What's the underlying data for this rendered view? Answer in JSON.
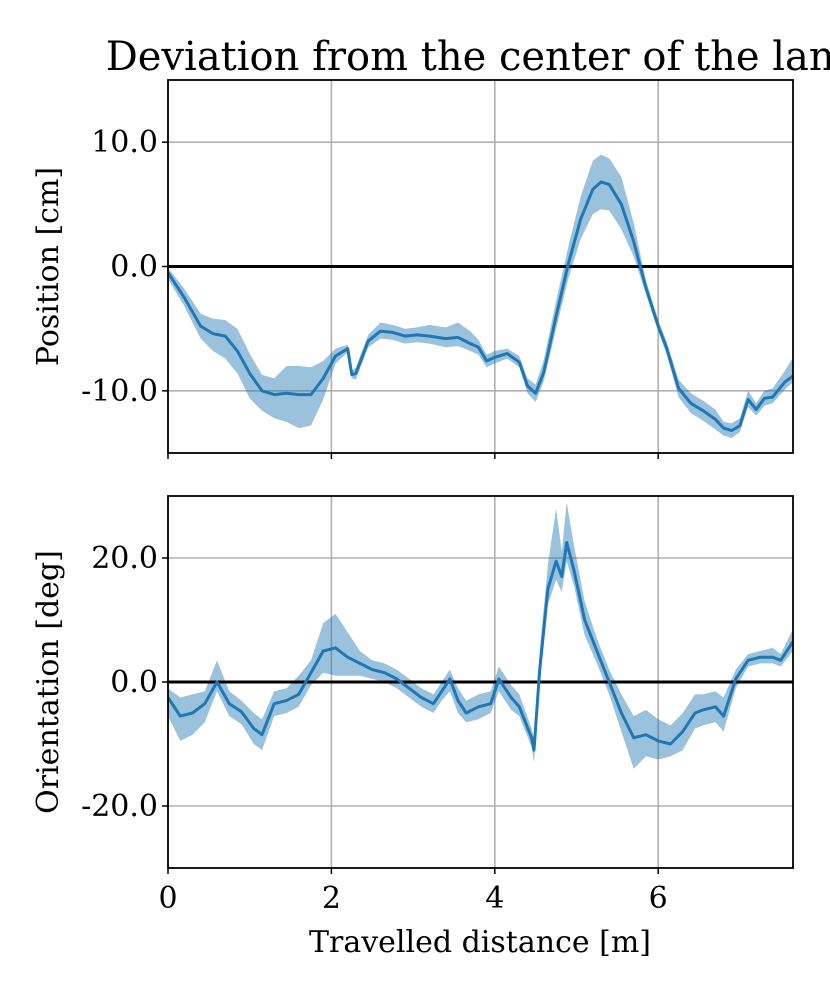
{
  "chart_data": {
    "title": "Deviation from the center of the lane",
    "xlabel": "Travelled distance [m]",
    "xlim": [
      0,
      7.65
    ],
    "xticks": [
      0,
      2,
      4,
      6
    ],
    "xtick_labels": [
      "0",
      "2",
      "4",
      "6"
    ],
    "grid": true,
    "colors": {
      "series": "#1f77b4",
      "zero_line": "#000000",
      "grid": "#b0b0b0"
    },
    "panels": [
      {
        "type": "line",
        "ylabel": "Position [cm]",
        "ylim": [
          -15,
          15
        ],
        "yticks": [
          10,
          0,
          -10
        ],
        "ytick_labels": [
          "10.0",
          "0.0",
          "-10.0"
        ],
        "reference_line_y": 0,
        "series": [
          {
            "style": "mean with shaded spread",
            "x": [
              0,
              0.2,
              0.4,
              0.55,
              0.7,
              0.85,
              1.0,
              1.15,
              1.3,
              1.45,
              1.6,
              1.75,
              1.9,
              2.05,
              2.2,
              2.25,
              2.3,
              2.45,
              2.6,
              2.75,
              2.9,
              3.05,
              3.2,
              3.4,
              3.55,
              3.7,
              3.8,
              3.9,
              4.0,
              4.15,
              4.3,
              4.4,
              4.5,
              4.6,
              4.75,
              4.9,
              5.05,
              5.2,
              5.3,
              5.4,
              5.55,
              5.7,
              5.85,
              6.0,
              6.1,
              6.25,
              6.4,
              6.55,
              6.7,
              6.8,
              6.9,
              7.0,
              7.1,
              7.2,
              7.3,
              7.4,
              7.55,
              7.65
            ],
            "mean": [
              -0.5,
              -2.5,
              -4.8,
              -5.4,
              -5.6,
              -6.8,
              -8.6,
              -10.0,
              -10.3,
              -10.2,
              -10.3,
              -10.3,
              -9.0,
              -7.2,
              -6.6,
              -8.7,
              -8.6,
              -6.0,
              -5.2,
              -5.3,
              -5.6,
              -5.5,
              -5.6,
              -5.8,
              -5.7,
              -6.2,
              -6.5,
              -7.6,
              -7.3,
              -7.0,
              -7.7,
              -9.6,
              -10.2,
              -8.5,
              -4.0,
              0.2,
              3.8,
              6.2,
              6.8,
              6.6,
              5.0,
              2.0,
              -1.7,
              -4.8,
              -6.5,
              -9.8,
              -11.0,
              -11.6,
              -12.3,
              -13.0,
              -13.2,
              -12.8,
              -10.7,
              -11.5,
              -10.6,
              -10.5,
              -9.3,
              -8.8
            ],
            "lower": [
              -1.0,
              -3.2,
              -5.8,
              -6.8,
              -7.4,
              -8.6,
              -10.6,
              -11.6,
              -12.2,
              -12.5,
              -13.0,
              -12.8,
              -10.7,
              -7.8,
              -6.9,
              -9.0,
              -9.1,
              -6.5,
              -5.8,
              -5.9,
              -6.2,
              -6.1,
              -6.2,
              -6.5,
              -6.4,
              -6.8,
              -7.1,
              -8.1,
              -7.8,
              -7.4,
              -8.1,
              -10.2,
              -10.9,
              -9.2,
              -5.0,
              -1.0,
              2.2,
              4.2,
              4.6,
              4.5,
              3.0,
              0.8,
              -2.2,
              -5.2,
              -7.0,
              -10.5,
              -11.8,
              -12.4,
              -13.1,
              -13.6,
              -13.8,
              -13.3,
              -11.3,
              -12.0,
              -11.2,
              -11.0,
              -9.9,
              -9.3
            ],
            "upper": [
              -0.1,
              -1.8,
              -3.8,
              -4.2,
              -4.3,
              -5.0,
              -7.0,
              -8.7,
              -9.0,
              -8.0,
              -8.0,
              -8.1,
              -7.6,
              -6.6,
              -6.3,
              -8.4,
              -8.1,
              -5.5,
              -4.5,
              -4.7,
              -5.0,
              -4.9,
              -4.7,
              -4.9,
              -4.5,
              -5.2,
              -5.9,
              -7.1,
              -6.8,
              -6.6,
              -7.2,
              -9.0,
              -9.5,
              -7.5,
              -2.8,
              1.6,
              5.6,
              8.5,
              9.0,
              8.7,
              7.2,
              3.5,
              -1.1,
              -4.3,
              -6.0,
              -9.1,
              -10.2,
              -10.8,
              -11.5,
              -12.5,
              -12.6,
              -12.2,
              -10.0,
              -11.0,
              -10.0,
              -9.8,
              -8.4,
              -7.3
            ]
          }
        ]
      },
      {
        "type": "line",
        "ylabel": "Orientation [deg]",
        "ylim": [
          -30,
          30
        ],
        "yticks": [
          20,
          0,
          -20
        ],
        "ytick_labels": [
          "20.0",
          "0.0",
          "-20.0"
        ],
        "reference_line_y": 0,
        "series": [
          {
            "style": "mean with shaded spread",
            "x": [
              0,
              0.15,
              0.3,
              0.45,
              0.6,
              0.75,
              0.9,
              1.05,
              1.15,
              1.3,
              1.45,
              1.6,
              1.75,
              1.9,
              2.05,
              2.2,
              2.35,
              2.5,
              2.65,
              2.8,
              2.95,
              3.1,
              3.25,
              3.35,
              3.45,
              3.55,
              3.65,
              3.8,
              3.95,
              4.05,
              4.2,
              4.3,
              4.45,
              4.48,
              4.55,
              4.65,
              4.75,
              4.82,
              4.88,
              4.97,
              5.1,
              5.25,
              5.4,
              5.55,
              5.7,
              5.85,
              6.0,
              6.15,
              6.3,
              6.45,
              6.55,
              6.7,
              6.8,
              6.95,
              7.1,
              7.25,
              7.4,
              7.5,
              7.65
            ],
            "mean": [
              -2.5,
              -5.5,
              -5.0,
              -3.5,
              0.0,
              -3.5,
              -4.8,
              -7.5,
              -8.5,
              -3.5,
              -3.0,
              -2.0,
              1.5,
              5.0,
              5.5,
              4.0,
              3.0,
              2.0,
              1.5,
              0.5,
              -1.0,
              -2.5,
              -3.5,
              -1.5,
              0.5,
              -3.0,
              -5.0,
              -4.0,
              -3.5,
              0.5,
              -2.5,
              -4.0,
              -9.0,
              -11.0,
              2.0,
              15.0,
              19.5,
              17.0,
              22.5,
              18.0,
              10.0,
              5.0,
              0.0,
              -5.0,
              -9.0,
              -8.5,
              -9.5,
              -10.0,
              -8.0,
              -5.0,
              -4.5,
              -4.0,
              -5.5,
              0.5,
              3.5,
              4.0,
              4.0,
              3.5,
              6.5
            ],
            "lower": [
              -5.5,
              -9.5,
              -8.5,
              -6.5,
              -1.5,
              -5.5,
              -6.8,
              -10.0,
              -11.0,
              -5.5,
              -5.0,
              -4.0,
              -0.5,
              1.5,
              1.0,
              1.0,
              1.0,
              0.5,
              0.0,
              -1.0,
              -2.5,
              -4.0,
              -5.0,
              -3.0,
              -1.5,
              -5.0,
              -6.5,
              -6.0,
              -5.0,
              -1.5,
              -4.5,
              -5.5,
              -10.5,
              -13.0,
              -0.5,
              12.5,
              16.5,
              14.5,
              19.5,
              15.5,
              7.5,
              3.0,
              -2.0,
              -8.0,
              -14.0,
              -12.0,
              -12.5,
              -12.0,
              -11.0,
              -7.5,
              -7.0,
              -6.5,
              -8.0,
              -1.0,
              2.5,
              3.0,
              3.0,
              2.5,
              5.0
            ],
            "upper": [
              -1.0,
              -2.5,
              -2.0,
              -1.5,
              3.5,
              -1.5,
              -3.0,
              -5.0,
              -6.0,
              -1.5,
              -1.0,
              1.0,
              3.5,
              9.5,
              11.0,
              8.0,
              5.0,
              3.5,
              3.0,
              2.0,
              0.5,
              -1.0,
              -2.0,
              0.0,
              2.0,
              -1.0,
              -3.0,
              -2.0,
              -1.5,
              2.5,
              -0.5,
              -2.0,
              -7.5,
              -9.0,
              5.0,
              19.0,
              28.0,
              21.0,
              29.0,
              22.0,
              13.0,
              7.0,
              2.0,
              -2.0,
              -5.5,
              -4.5,
              -6.0,
              -7.0,
              -5.0,
              -2.0,
              -2.0,
              -1.5,
              -2.5,
              2.0,
              4.5,
              5.0,
              5.5,
              4.5,
              8.5
            ]
          }
        ]
      }
    ]
  }
}
